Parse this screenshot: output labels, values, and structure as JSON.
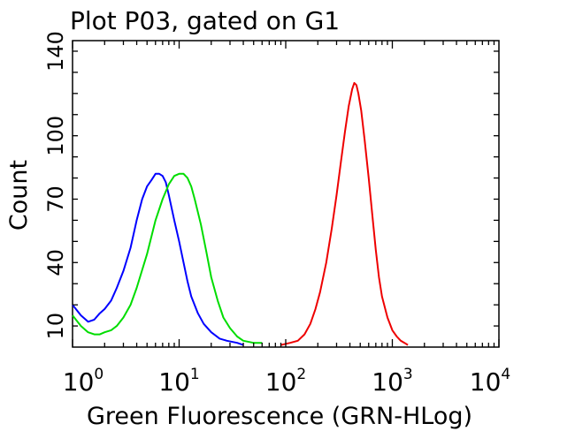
{
  "chart_data": {
    "type": "line",
    "title": "Plot P03, gated on G1",
    "xlabel": "Green Fluorescence (GRN-HLog)",
    "ylabel": "Count",
    "x_scale": "log",
    "xlim": [
      1,
      10000
    ],
    "ylim": [
      0,
      145
    ],
    "xticks": [
      {
        "base": "10",
        "exp": "0",
        "value": 1
      },
      {
        "base": "10",
        "exp": "1",
        "value": 10
      },
      {
        "base": "10",
        "exp": "2",
        "value": 100
      },
      {
        "base": "10",
        "exp": "3",
        "value": 1000
      },
      {
        "base": "10",
        "exp": "4",
        "value": 10000
      }
    ],
    "yticks": [
      10,
      40,
      70,
      100,
      140
    ],
    "grid": false,
    "legend": "none",
    "series": [
      {
        "color": "#0000ff",
        "points": [
          [
            1.0,
            20
          ],
          [
            1.2,
            15
          ],
          [
            1.4,
            12
          ],
          [
            1.6,
            13
          ],
          [
            1.8,
            16
          ],
          [
            2.0,
            18
          ],
          [
            2.3,
            22
          ],
          [
            2.6,
            28
          ],
          [
            3.0,
            36
          ],
          [
            3.5,
            47
          ],
          [
            4.0,
            60
          ],
          [
            4.5,
            70
          ],
          [
            5.0,
            76
          ],
          [
            5.5,
            79
          ],
          [
            6.0,
            82
          ],
          [
            6.5,
            82
          ],
          [
            7.0,
            81
          ],
          [
            7.5,
            78
          ],
          [
            8.0,
            72
          ],
          [
            9.0,
            60
          ],
          [
            10.0,
            50
          ],
          [
            11.0,
            40
          ],
          [
            12.0,
            31
          ],
          [
            13.0,
            24
          ],
          [
            15.0,
            16
          ],
          [
            17.0,
            11
          ],
          [
            20.0,
            7
          ],
          [
            24.0,
            4
          ],
          [
            28.0,
            3
          ],
          [
            35.0,
            2
          ],
          [
            40.0,
            1
          ]
        ]
      },
      {
        "color": "#00dd00",
        "points": [
          [
            1.0,
            15
          ],
          [
            1.2,
            10
          ],
          [
            1.4,
            7
          ],
          [
            1.6,
            6
          ],
          [
            1.8,
            6
          ],
          [
            2.0,
            7
          ],
          [
            2.3,
            8
          ],
          [
            2.6,
            10
          ],
          [
            3.0,
            14
          ],
          [
            3.5,
            20
          ],
          [
            4.0,
            28
          ],
          [
            5.0,
            44
          ],
          [
            6.0,
            60
          ],
          [
            7.0,
            70
          ],
          [
            8.0,
            77
          ],
          [
            9.0,
            81
          ],
          [
            10.0,
            82
          ],
          [
            11.0,
            82
          ],
          [
            12.0,
            80
          ],
          [
            13.0,
            76
          ],
          [
            14.0,
            70
          ],
          [
            16.0,
            58
          ],
          [
            18.0,
            45
          ],
          [
            20.0,
            33
          ],
          [
            23.0,
            22
          ],
          [
            26.0,
            14
          ],
          [
            30.0,
            9
          ],
          [
            35.0,
            5
          ],
          [
            40.0,
            3
          ],
          [
            50.0,
            2
          ],
          [
            60.0,
            2
          ]
        ]
      },
      {
        "color": "#ee0000",
        "points": [
          [
            90,
            1
          ],
          [
            110,
            2
          ],
          [
            130,
            3
          ],
          [
            150,
            6
          ],
          [
            170,
            11
          ],
          [
            190,
            18
          ],
          [
            210,
            26
          ],
          [
            240,
            40
          ],
          [
            270,
            56
          ],
          [
            300,
            72
          ],
          [
            330,
            88
          ],
          [
            360,
            102
          ],
          [
            390,
            114
          ],
          [
            420,
            122
          ],
          [
            440,
            125
          ],
          [
            460,
            124
          ],
          [
            480,
            120
          ],
          [
            510,
            112
          ],
          [
            550,
            98
          ],
          [
            600,
            80
          ],
          [
            650,
            62
          ],
          [
            700,
            46
          ],
          [
            750,
            33
          ],
          [
            800,
            24
          ],
          [
            900,
            14
          ],
          [
            1000,
            8
          ],
          [
            1100,
            5
          ],
          [
            1200,
            3
          ],
          [
            1300,
            2
          ],
          [
            1400,
            1
          ]
        ]
      }
    ]
  }
}
